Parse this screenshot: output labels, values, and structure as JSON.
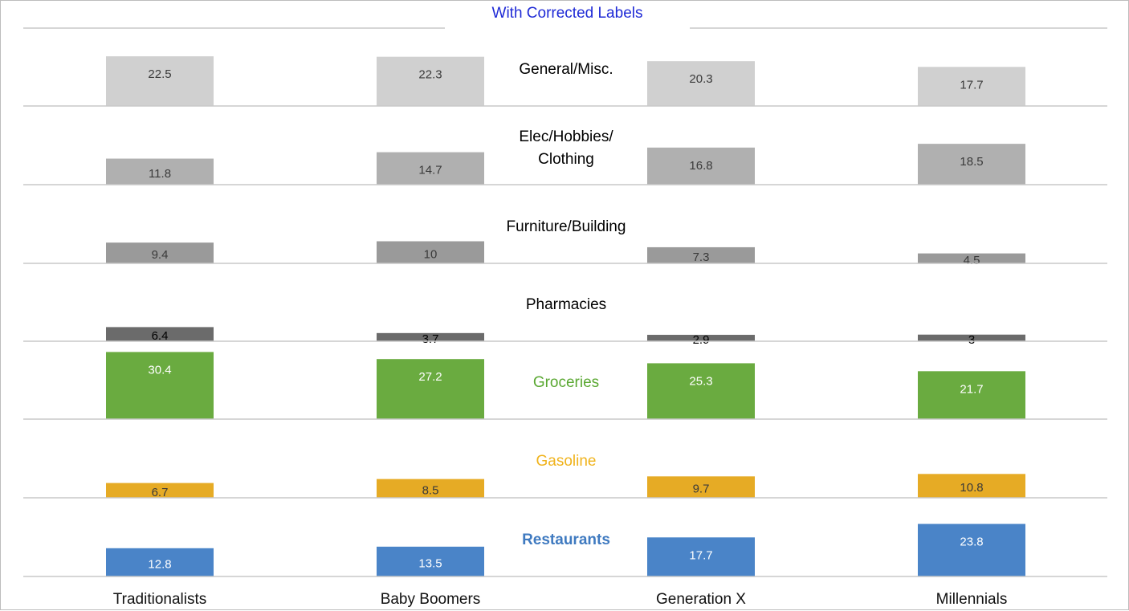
{
  "chart_data": {
    "type": "bar",
    "title": "With Corrected Labels",
    "categories": [
      "Traditionalists",
      "Baby Boomers",
      "Generation X",
      "Millennials"
    ],
    "panel_ylim": [
      0,
      36
    ],
    "grid": false,
    "legend": "none",
    "series": [
      {
        "name": "General/Misc.",
        "color": "#d0d0d0",
        "label_color": "#000000",
        "value_label_color": "#3a3a3a",
        "values": [
          22.5,
          22.3,
          20.3,
          17.7
        ]
      },
      {
        "name": "Elec/Hobbies/ Clothing",
        "color": "#b0b0b0",
        "label_color": "#000000",
        "value_label_color": "#3a3a3a",
        "values": [
          11.8,
          14.7,
          16.8,
          18.5
        ]
      },
      {
        "name": "Furniture/Building",
        "color": "#9a9a9a",
        "label_color": "#000000",
        "value_label_color": "#3a3a3a",
        "values": [
          9.4,
          10,
          7.3,
          4.5
        ]
      },
      {
        "name": "Pharmacies",
        "color": "#6b6b6b",
        "label_color": "#000000",
        "value_label_color": "#000000",
        "values": [
          6.4,
          3.7,
          2.9,
          3
        ]
      },
      {
        "name": "Groceries",
        "color": "#6aab40",
        "label_color": "#5aa832",
        "value_label_color": "#ffffff",
        "values": [
          30.4,
          27.2,
          25.3,
          21.7
        ]
      },
      {
        "name": "Gasoline",
        "color": "#e6ab25",
        "label_color": "#f0b31c",
        "value_label_color": "#3a3a3a",
        "values": [
          6.7,
          8.5,
          9.7,
          10.8
        ]
      },
      {
        "name": "Restaurants",
        "color": "#4a84c8",
        "label_color": "#3f7ac0",
        "value_label_color": "#ffffff",
        "values": [
          12.8,
          13.5,
          17.7,
          23.8
        ]
      }
    ]
  }
}
